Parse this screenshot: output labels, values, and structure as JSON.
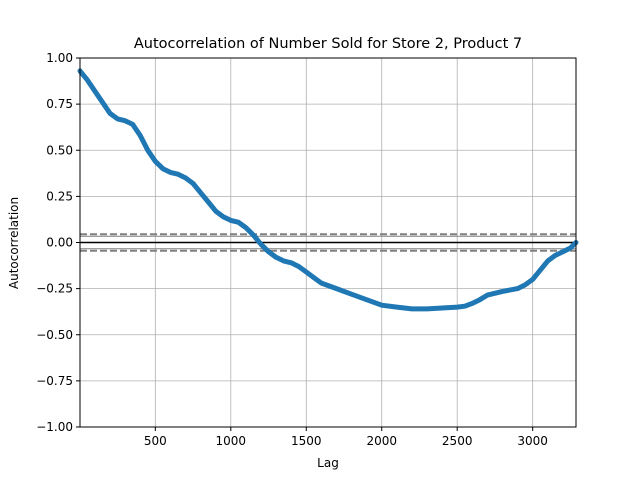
{
  "chart_data": {
    "type": "line",
    "title": "Autocorrelation of Number Sold for Store 2, Product 7",
    "xlabel": "Lag",
    "ylabel": "Autocorrelation",
    "xlim": [
      1,
      3287
    ],
    "ylim": [
      -1.0,
      1.0
    ],
    "x_ticks": [
      500,
      1000,
      1500,
      2000,
      2500,
      3000
    ],
    "y_ticks": [
      -1.0,
      -0.75,
      -0.5,
      -0.25,
      0.0,
      0.25,
      0.5,
      0.75,
      1.0
    ],
    "x_tick_labels": [
      "500",
      "1000",
      "1500",
      "2000",
      "2500",
      "3000"
    ],
    "y_tick_labels": [
      "−1.00",
      "−0.75",
      "−0.50",
      "−0.25",
      "0.00",
      "0.25",
      "0.50",
      "0.75",
      "1.00"
    ],
    "grid": true,
    "confidence_band": {
      "inner": 0.034,
      "outer": 0.045,
      "zero_line": 0.0
    },
    "series": [
      {
        "color": "#1f77b4",
        "x": [
          1,
          50,
          100,
          150,
          200,
          250,
          300,
          350,
          400,
          450,
          500,
          550,
          600,
          650,
          700,
          750,
          800,
          850,
          900,
          950,
          1000,
          1050,
          1100,
          1150,
          1200,
          1250,
          1300,
          1350,
          1400,
          1450,
          1500,
          1550,
          1600,
          1700,
          1800,
          1900,
          2000,
          2100,
          2200,
          2300,
          2400,
          2500,
          2550,
          2600,
          2650,
          2700,
          2800,
          2900,
          2950,
          3000,
          3050,
          3100,
          3150,
          3200,
          3250,
          3287
        ],
        "y": [
          0.93,
          0.88,
          0.82,
          0.76,
          0.7,
          0.67,
          0.66,
          0.64,
          0.58,
          0.5,
          0.44,
          0.4,
          0.38,
          0.37,
          0.35,
          0.32,
          0.27,
          0.22,
          0.17,
          0.14,
          0.12,
          0.11,
          0.08,
          0.04,
          -0.01,
          -0.05,
          -0.08,
          -0.1,
          -0.11,
          -0.13,
          -0.16,
          -0.19,
          -0.22,
          -0.25,
          -0.28,
          -0.31,
          -0.34,
          -0.35,
          -0.36,
          -0.36,
          -0.355,
          -0.35,
          -0.345,
          -0.33,
          -0.31,
          -0.285,
          -0.265,
          -0.25,
          -0.23,
          -0.2,
          -0.15,
          -0.1,
          -0.07,
          -0.05,
          -0.03,
          0.0
        ]
      }
    ]
  }
}
